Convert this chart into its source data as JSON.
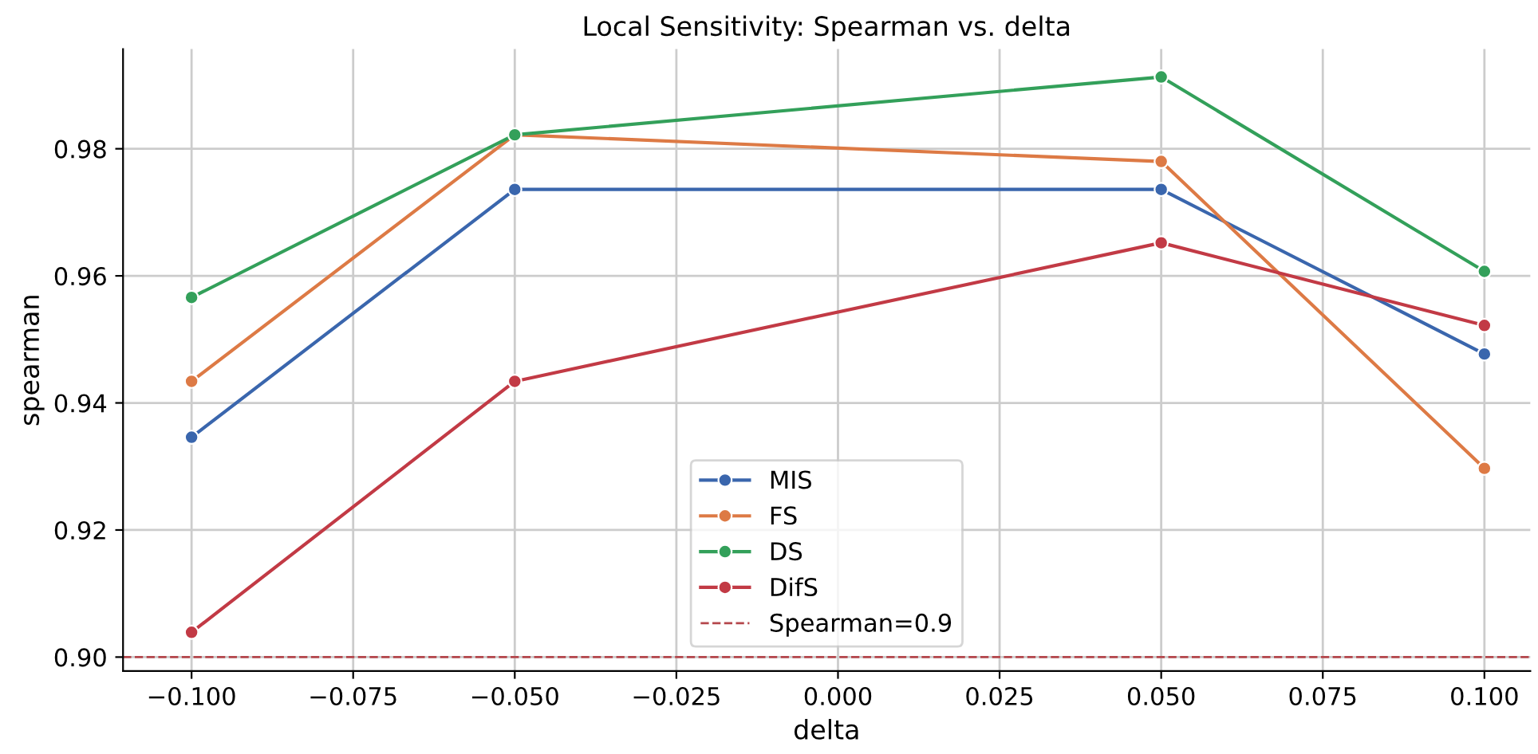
{
  "chart_data": {
    "type": "line",
    "title": "Local Sensitivity: Spearman vs. delta",
    "xlabel": "delta",
    "ylabel": "spearman",
    "x": [
      -0.1,
      -0.05,
      0.05,
      0.1
    ],
    "series": [
      {
        "name": "MIS",
        "color": "#3a66ad",
        "values": [
          0.9346,
          0.9736,
          0.9736,
          0.9477
        ]
      },
      {
        "name": "FS",
        "color": "#dd7a45",
        "values": [
          0.9434,
          0.9822,
          0.978,
          0.9297
        ]
      },
      {
        "name": "DS",
        "color": "#33a05a",
        "values": [
          0.9566,
          0.9822,
          0.9913,
          0.9607
        ]
      },
      {
        "name": "DifS",
        "color": "#c23a45",
        "values": [
          0.9039,
          0.9434,
          0.9652,
          0.9522
        ]
      }
    ],
    "ref_lines": [
      {
        "axis": "y",
        "value": 0.9,
        "label": "Spearman=0.9",
        "color": "#b5474c",
        "line_style": "dashed"
      }
    ],
    "xlim": [
      -0.1106,
      0.1071
    ],
    "ylim": [
      0.8978,
      0.9957
    ],
    "xticks": [
      {
        "value": -0.1,
        "label": "−0.100"
      },
      {
        "value": -0.075,
        "label": "−0.075"
      },
      {
        "value": -0.05,
        "label": "−0.050"
      },
      {
        "value": -0.025,
        "label": "−0.025"
      },
      {
        "value": 0.0,
        "label": "0.000"
      },
      {
        "value": 0.025,
        "label": "0.025"
      },
      {
        "value": 0.05,
        "label": "0.050"
      },
      {
        "value": 0.075,
        "label": "0.075"
      },
      {
        "value": 0.1,
        "label": "0.100"
      }
    ],
    "yticks": [
      {
        "value": 0.9,
        "label": "0.90"
      },
      {
        "value": 0.92,
        "label": "0.92"
      },
      {
        "value": 0.94,
        "label": "0.94"
      },
      {
        "value": 0.96,
        "label": "0.96"
      },
      {
        "value": 0.98,
        "label": "0.98"
      }
    ],
    "grid": true,
    "legend": "bottom",
    "marker": "circle",
    "line_style": "solid"
  }
}
